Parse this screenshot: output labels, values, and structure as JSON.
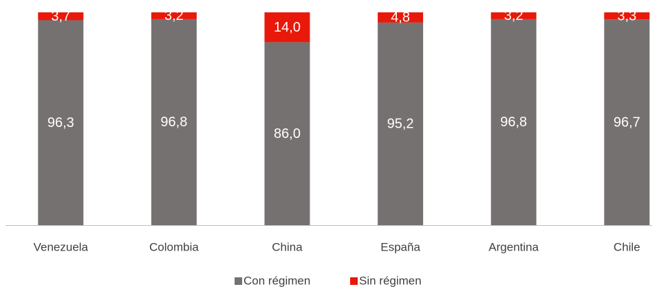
{
  "chart_data": {
    "type": "stacked_bar",
    "categories": [
      "Venezuela",
      "Colombia",
      "China",
      "España",
      "Argentina",
      "Chile"
    ],
    "series": [
      {
        "name": "Con régimen",
        "color": "#767171",
        "values": [
          96.3,
          96.8,
          86.0,
          95.2,
          96.8,
          96.7
        ],
        "value_labels": [
          "96,3",
          "96,8",
          "86,0",
          "95,2",
          "96,8",
          "96,7"
        ]
      },
      {
        "name": "Sin régimen",
        "color": "#e8190a",
        "values": [
          3.7,
          3.2,
          14.0,
          4.8,
          3.2,
          3.3
        ],
        "value_labels": [
          "3,7",
          "3,2",
          "14,0",
          "4,8",
          "3,2",
          "3,3"
        ]
      }
    ],
    "ylim": [
      0,
      100
    ]
  }
}
